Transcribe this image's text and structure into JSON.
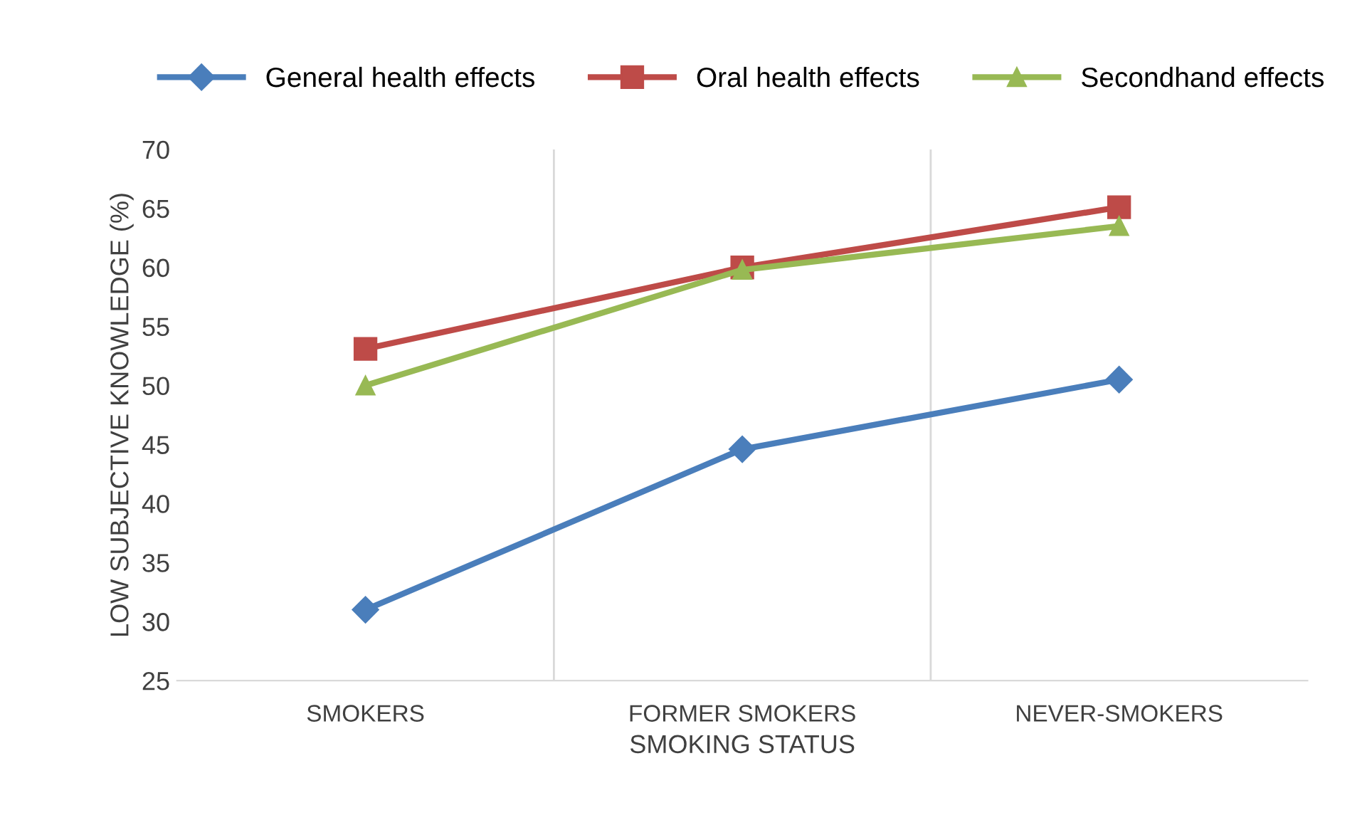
{
  "chart_data": {
    "type": "line",
    "xlabel": "SMOKING STATUS",
    "ylabel": "LOW SUBJECTIVE KNOWLEDGE (%)",
    "categories": [
      "SMOKERS",
      "FORMER SMOKERS",
      "NEVER-SMOKERS"
    ],
    "series": [
      {
        "name": "General health effects",
        "color": "#4a7ebb",
        "marker": "diamond",
        "values": [
          31.0,
          44.6,
          50.5
        ]
      },
      {
        "name": "Oral health effects",
        "color": "#be4b48",
        "marker": "square",
        "values": [
          53.1,
          60.0,
          65.1
        ]
      },
      {
        "name": "Secondhand effects",
        "color": "#98b954",
        "marker": "triangle",
        "values": [
          50.0,
          59.8,
          63.5
        ]
      }
    ],
    "ylim": [
      25,
      70
    ],
    "yticks": [
      25,
      30,
      35,
      40,
      45,
      50,
      55,
      60,
      65,
      70
    ],
    "grid": "x",
    "legend": "top",
    "line_style": "solid"
  }
}
